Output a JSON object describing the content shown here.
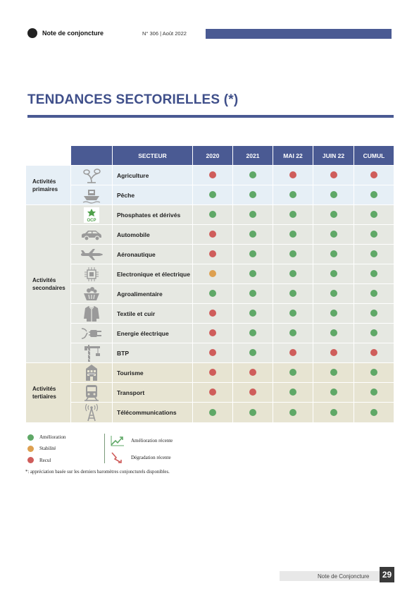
{
  "header": {
    "title": "Note de conjoncture",
    "issue": "N° 306 | Août 2022"
  },
  "page_title": "TENDANCES SECTORIELLES (*)",
  "table": {
    "columns": [
      "SECTEUR",
      "2020",
      "2021",
      "MAI 22",
      "JUIN 22",
      "CUMUL"
    ],
    "groups": [
      {
        "label": "Activités primaires"
      },
      {
        "label": "Activités secondaires"
      },
      {
        "label": "Activités tertiaires"
      }
    ],
    "rows": [
      {
        "sector": "Agriculture",
        "icon": "plant-icon",
        "status": [
          "recul",
          "amelioration",
          "recul",
          "recul",
          "recul"
        ]
      },
      {
        "sector": "Pêche",
        "icon": "fishing-boat-icon",
        "status": [
          "amelioration",
          "amelioration",
          "amelioration",
          "amelioration",
          "amelioration"
        ]
      },
      {
        "sector": "Phosphates et dérivés",
        "icon": "ocp-logo-icon",
        "icon_text": "OCP",
        "status": [
          "amelioration",
          "amelioration",
          "amelioration",
          "amelioration",
          "amelioration"
        ]
      },
      {
        "sector": "Automobile",
        "icon": "car-icon",
        "status": [
          "recul",
          "amelioration",
          "amelioration",
          "amelioration",
          "amelioration"
        ]
      },
      {
        "sector": "Aéronautique",
        "icon": "airplane-icon",
        "status": [
          "recul",
          "amelioration",
          "amelioration",
          "amelioration",
          "amelioration"
        ]
      },
      {
        "sector": "Electronique et électrique",
        "icon": "chip-icon",
        "status": [
          "stabilite",
          "amelioration",
          "amelioration",
          "amelioration",
          "amelioration"
        ]
      },
      {
        "sector": "Agroalimentaire",
        "icon": "basket-icon",
        "status": [
          "amelioration",
          "amelioration",
          "amelioration",
          "amelioration",
          "amelioration"
        ]
      },
      {
        "sector": "Textile et cuir",
        "icon": "jacket-icon",
        "status": [
          "recul",
          "amelioration",
          "amelioration",
          "amelioration",
          "amelioration"
        ]
      },
      {
        "sector": "Energie électrique",
        "icon": "plug-icon",
        "status": [
          "recul",
          "amelioration",
          "amelioration",
          "amelioration",
          "amelioration"
        ]
      },
      {
        "sector": "BTP",
        "icon": "crane-icon",
        "status": [
          "recul",
          "amelioration",
          "recul",
          "recul",
          "recul"
        ]
      },
      {
        "sector": "Tourisme",
        "icon": "hotel-icon",
        "status": [
          "recul",
          "recul",
          "amelioration",
          "amelioration",
          "amelioration"
        ]
      },
      {
        "sector": "Transport",
        "icon": "train-icon",
        "status": [
          "recul",
          "recul",
          "amelioration",
          "amelioration",
          "amelioration"
        ]
      },
      {
        "sector": "Télécommunications",
        "icon": "antenna-icon",
        "status": [
          "amelioration",
          "amelioration",
          "amelioration",
          "amelioration",
          "amelioration"
        ]
      }
    ]
  },
  "status_colors": {
    "amelioration": "#5fa867",
    "stabilite": "#dda050",
    "recul": "#cf5d5b"
  },
  "legend": {
    "amelioration": "Amélioration",
    "stabilite": "Stabilité",
    "recul": "Recul",
    "recent_up": "Amélioration récente",
    "recent_down": "Dégradation récente"
  },
  "footnote": "*: appréciation basée sur les derniers baromètres conjoncturels disponibles.",
  "footer": {
    "label": "Note de Conjoncture",
    "page_number": "29"
  }
}
